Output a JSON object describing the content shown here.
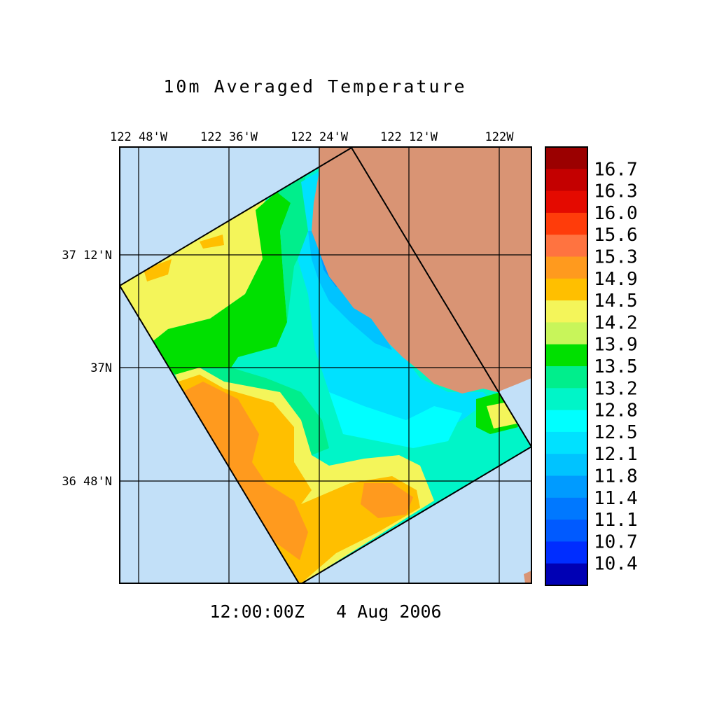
{
  "title": "10m Averaged Temperature",
  "timestamp": "12:00:00Z   4 Aug 2006",
  "colors": {
    "ocean_outside": "#c2e0f8",
    "land": "#d99474",
    "frame": "#000000",
    "grid": "#000000"
  },
  "map": {
    "lon_labels": [
      "122 48'W",
      "122 36'W",
      "122 24'W",
      "122 12'W",
      "122W"
    ],
    "lat_labels": [
      "37 12'N",
      "37N",
      "36 48'N"
    ]
  },
  "colorbar": {
    "labels": [
      "16.7",
      "16.3",
      "16.0",
      "15.6",
      "15.3",
      "14.9",
      "14.5",
      "14.2",
      "13.9",
      "13.5",
      "13.2",
      "12.8",
      "12.5",
      "12.1",
      "11.8",
      "11.4",
      "11.1",
      "10.7",
      "10.4"
    ],
    "colors": [
      "#9b0000",
      "#c40000",
      "#e40a00",
      "#ff3c0a",
      "#ff7340",
      "#ff9a1e",
      "#ffbf00",
      "#f4f55a",
      "#c8f55a",
      "#00e000",
      "#00ee8c",
      "#00f5c8",
      "#00ffff",
      "#00e1ff",
      "#00c3ff",
      "#009bff",
      "#0078ff",
      "#005aff",
      "#002dff",
      "#0000b4"
    ]
  }
}
